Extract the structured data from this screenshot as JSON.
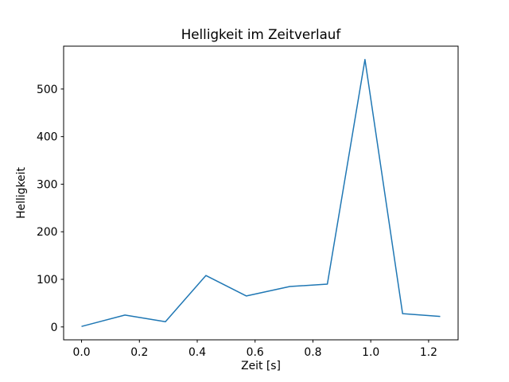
{
  "chart_data": {
    "type": "line",
    "title": "Helligkeit im Zeitverlauf",
    "xlabel": "Zeit [s]",
    "ylabel": "Helligkeit",
    "x": [
      0.0,
      0.15,
      0.29,
      0.43,
      0.57,
      0.72,
      0.85,
      0.98,
      1.11,
      1.24
    ],
    "y": [
      1,
      25,
      11,
      108,
      65,
      85,
      90,
      562,
      28,
      22
    ],
    "xlim": [
      -0.062,
      1.302
    ],
    "ylim": [
      -27.1,
      590.1
    ],
    "xticks": [
      0.0,
      0.2,
      0.4,
      0.6,
      0.8,
      1.0,
      1.2
    ],
    "xtick_labels": [
      "0.0",
      "0.2",
      "0.4",
      "0.6",
      "0.8",
      "1.0",
      "1.2"
    ],
    "yticks": [
      0,
      100,
      200,
      300,
      400,
      500
    ],
    "ytick_labels": [
      "0",
      "100",
      "200",
      "300",
      "400",
      "500"
    ],
    "line_color": "#1f77b4",
    "axis_color": "#000000",
    "background_color": "#ffffff",
    "grid": false,
    "legend": null,
    "markers": false
  }
}
